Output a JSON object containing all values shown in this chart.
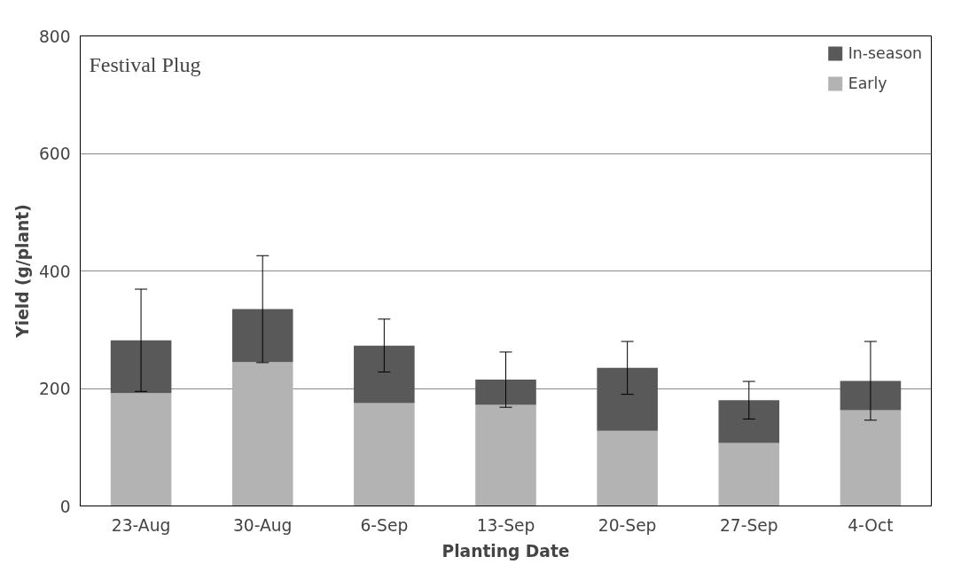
{
  "chart_data": {
    "type": "bar",
    "stacked": true,
    "xlabel": "Planting Date",
    "ylabel": "Yield (g/plant)",
    "annotations": [
      "Festival Plug"
    ],
    "categories": [
      "23-Aug",
      "30-Aug",
      "6-Sep",
      "13-Sep",
      "20-Sep",
      "27-Sep",
      "4-Oct"
    ],
    "series": [
      {
        "name": "Early",
        "color": "#b3b3b3",
        "values": [
          192,
          245,
          175,
          172,
          128,
          107,
          163
        ]
      },
      {
        "name": "In-season",
        "color": "#595959",
        "values": [
          90,
          90,
          98,
          43,
          107,
          73,
          50
        ],
        "errors": [
          87,
          91,
          45,
          47,
          45,
          32,
          67
        ]
      }
    ],
    "ylim": [
      0,
      800
    ],
    "yticks": [
      0,
      200,
      400,
      600,
      800
    ],
    "grid": "y",
    "legend": "top right"
  }
}
